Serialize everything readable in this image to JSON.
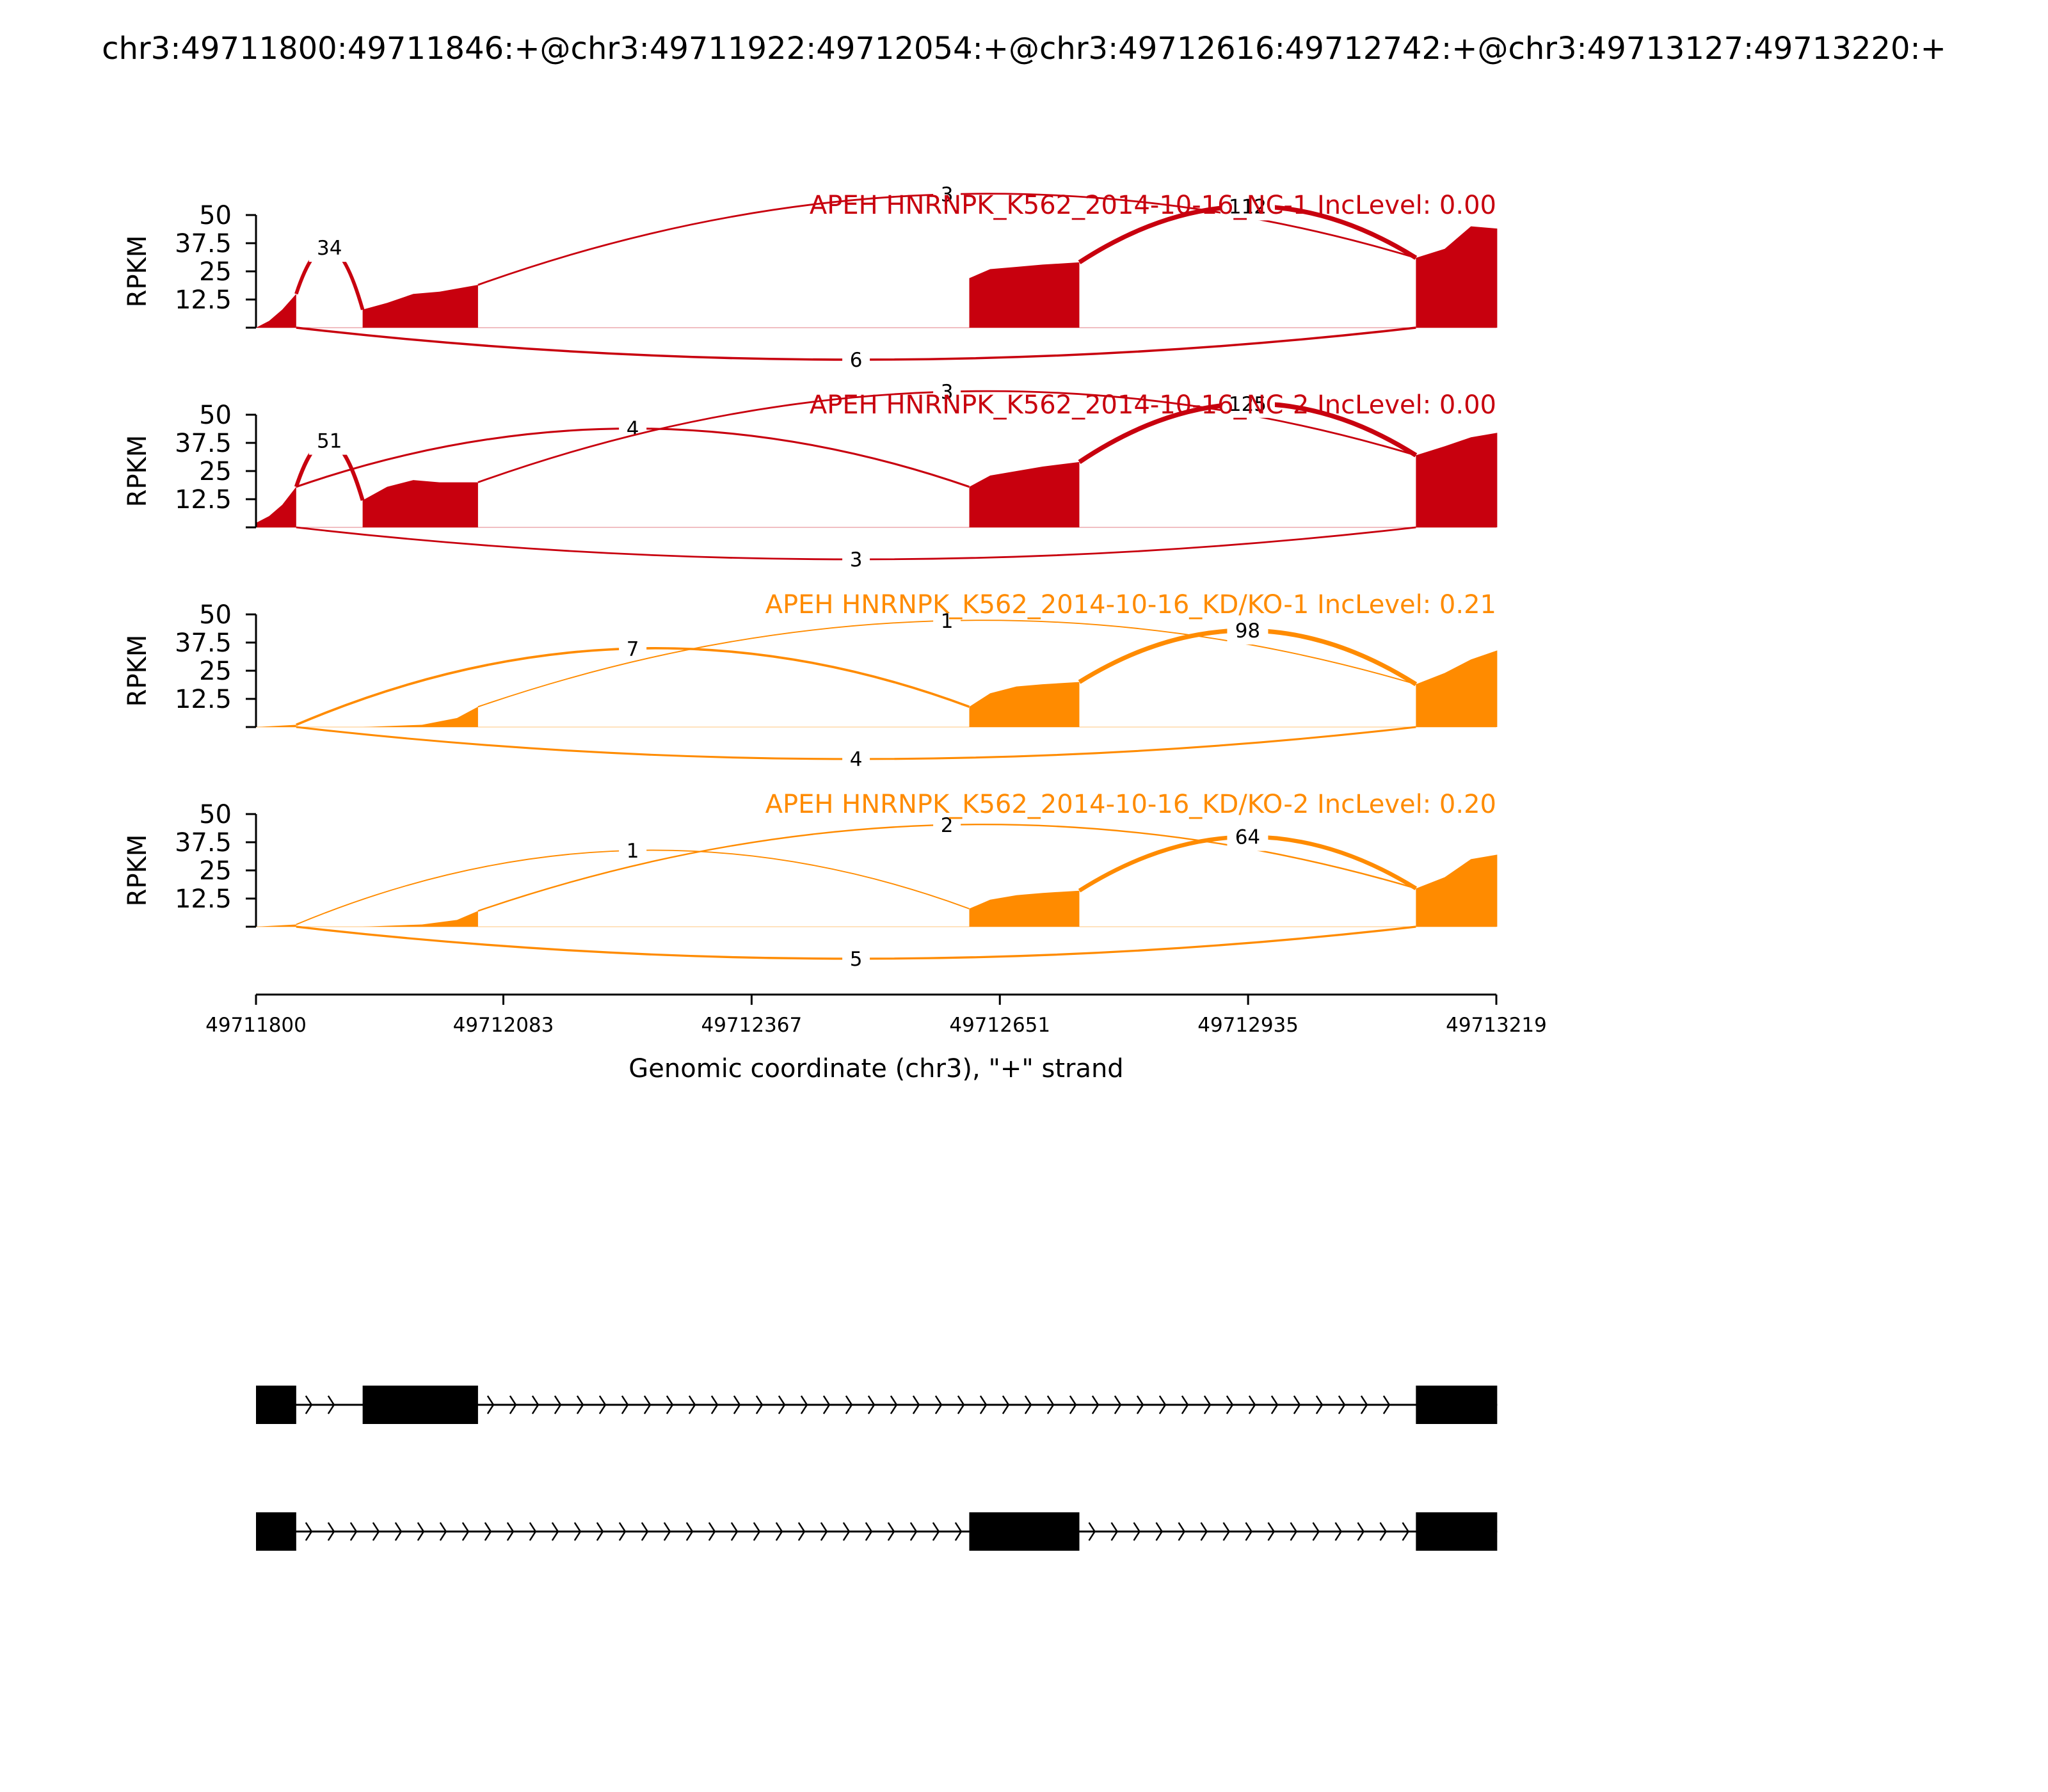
{
  "figure": {
    "title": "chr3:49711800:49711846:+@chr3:49711922:49712054:+@chr3:49712616:49712742:+@chr3:49713127:49713220:+"
  },
  "chart_data": {
    "type": "area",
    "gene": "APEH",
    "chromosome": "chr3",
    "strand": "+",
    "xlabel": "Genomic coordinate (chr3), \"+\" strand",
    "ylabel": "RPKM",
    "xlim": [
      49711800,
      49713219
    ],
    "xticks": [
      49711800,
      49712083,
      49712367,
      49712651,
      49712935,
      49713219
    ],
    "ylim": [
      0,
      50
    ],
    "yticks": [
      12.5,
      25,
      37.5,
      50
    ],
    "ytick_labels": [
      "12.5",
      "25",
      "37.5",
      "50"
    ],
    "exons": [
      {
        "start": 49711800,
        "end": 49711846
      },
      {
        "start": 49711922,
        "end": 49712054
      },
      {
        "start": 49712616,
        "end": 49712742
      },
      {
        "start": 49713127,
        "end": 49713220
      }
    ],
    "series": [
      {
        "name": "APEH HNRNPK_K562_2014-10-16_NC-1 IncLevel: 0.00",
        "color": "#C8000E",
        "coverage": [
          {
            "x": 49711800,
            "y": 0
          },
          {
            "x": 49711815,
            "y": 3
          },
          {
            "x": 49711830,
            "y": 8
          },
          {
            "x": 49711846,
            "y": 15
          },
          {
            "x": 49711922,
            "y": 8
          },
          {
            "x": 49711950,
            "y": 11
          },
          {
            "x": 49711980,
            "y": 15
          },
          {
            "x": 49712010,
            "y": 16
          },
          {
            "x": 49712054,
            "y": 19
          },
          {
            "x": 49712616,
            "y": 22
          },
          {
            "x": 49712640,
            "y": 26
          },
          {
            "x": 49712670,
            "y": 27
          },
          {
            "x": 49712700,
            "y": 28
          },
          {
            "x": 49712742,
            "y": 29
          },
          {
            "x": 49713127,
            "y": 31
          },
          {
            "x": 49713160,
            "y": 35
          },
          {
            "x": 49713190,
            "y": 45
          },
          {
            "x": 49713220,
            "y": 44
          }
        ],
        "junctions": [
          {
            "from": 49711846,
            "to": 49711922,
            "count": 34,
            "side": "above"
          },
          {
            "from": 49712054,
            "to": 49713127,
            "count": 3,
            "side": "above"
          },
          {
            "from": 49712742,
            "to": 49713127,
            "count": 112,
            "side": "above"
          },
          {
            "from": 49711846,
            "to": 49713127,
            "count": 6,
            "side": "below"
          }
        ]
      },
      {
        "name": "APEH HNRNPK_K562_2014-10-16_NC-2 IncLevel: 0.00",
        "color": "#C8000E",
        "coverage": [
          {
            "x": 49711800,
            "y": 2
          },
          {
            "x": 49711815,
            "y": 5
          },
          {
            "x": 49711830,
            "y": 10
          },
          {
            "x": 49711846,
            "y": 18
          },
          {
            "x": 49711922,
            "y": 12
          },
          {
            "x": 49711950,
            "y": 18
          },
          {
            "x": 49711980,
            "y": 21
          },
          {
            "x": 49712010,
            "y": 20
          },
          {
            "x": 49712054,
            "y": 20
          },
          {
            "x": 49712616,
            "y": 18
          },
          {
            "x": 49712640,
            "y": 23
          },
          {
            "x": 49712670,
            "y": 25
          },
          {
            "x": 49712700,
            "y": 27
          },
          {
            "x": 49712742,
            "y": 29
          },
          {
            "x": 49713127,
            "y": 32
          },
          {
            "x": 49713160,
            "y": 36
          },
          {
            "x": 49713190,
            "y": 40
          },
          {
            "x": 49713220,
            "y": 42
          }
        ],
        "junctions": [
          {
            "from": 49711846,
            "to": 49711922,
            "count": 51,
            "side": "above"
          },
          {
            "from": 49711846,
            "to": 49712616,
            "count": 4,
            "side": "above"
          },
          {
            "from": 49712054,
            "to": 49713127,
            "count": 3,
            "side": "above"
          },
          {
            "from": 49712742,
            "to": 49713127,
            "count": 125,
            "side": "above"
          },
          {
            "from": 49711846,
            "to": 49713127,
            "count": 3,
            "side": "below"
          }
        ]
      },
      {
        "name": "APEH HNRNPK_K562_2014-10-16_KD/KO-1 IncLevel: 0.21",
        "color": "#FF8B00",
        "coverage": [
          {
            "x": 49711800,
            "y": 0
          },
          {
            "x": 49711846,
            "y": 1
          },
          {
            "x": 49711922,
            "y": 0
          },
          {
            "x": 49711990,
            "y": 1
          },
          {
            "x": 49712030,
            "y": 4
          },
          {
            "x": 49712054,
            "y": 9
          },
          {
            "x": 49712616,
            "y": 9
          },
          {
            "x": 49712640,
            "y": 15
          },
          {
            "x": 49712670,
            "y": 18
          },
          {
            "x": 49712700,
            "y": 19
          },
          {
            "x": 49712742,
            "y": 20
          },
          {
            "x": 49713127,
            "y": 19
          },
          {
            "x": 49713160,
            "y": 24
          },
          {
            "x": 49713190,
            "y": 30
          },
          {
            "x": 49713220,
            "y": 34
          }
        ],
        "junctions": [
          {
            "from": 49711846,
            "to": 49712616,
            "count": 7,
            "side": "above"
          },
          {
            "from": 49712054,
            "to": 49713127,
            "count": 1,
            "side": "above"
          },
          {
            "from": 49712742,
            "to": 49713127,
            "count": 98,
            "side": "above"
          },
          {
            "from": 49711846,
            "to": 49713127,
            "count": 4,
            "side": "below"
          }
        ]
      },
      {
        "name": "APEH HNRNPK_K562_2014-10-16_KD/KO-2 IncLevel: 0.20",
        "color": "#FF8B00",
        "coverage": [
          {
            "x": 49711800,
            "y": 0
          },
          {
            "x": 49711846,
            "y": 1
          },
          {
            "x": 49711922,
            "y": 0
          },
          {
            "x": 49711990,
            "y": 1
          },
          {
            "x": 49712030,
            "y": 3
          },
          {
            "x": 49712054,
            "y": 7
          },
          {
            "x": 49712616,
            "y": 8
          },
          {
            "x": 49712640,
            "y": 12
          },
          {
            "x": 49712670,
            "y": 14
          },
          {
            "x": 49712700,
            "y": 15
          },
          {
            "x": 49712742,
            "y": 16
          },
          {
            "x": 49713127,
            "y": 17
          },
          {
            "x": 49713160,
            "y": 22
          },
          {
            "x": 49713190,
            "y": 30
          },
          {
            "x": 49713220,
            "y": 32
          }
        ],
        "junctions": [
          {
            "from": 49711846,
            "to": 49712616,
            "count": 1,
            "side": "above"
          },
          {
            "from": 49712054,
            "to": 49713127,
            "count": 2,
            "side": "above"
          },
          {
            "from": 49712742,
            "to": 49713127,
            "count": 64,
            "side": "above"
          },
          {
            "from": 49711846,
            "to": 49713127,
            "count": 5,
            "side": "below"
          }
        ]
      }
    ],
    "isoforms": [
      {
        "exons": [
          [
            49711800,
            49711846
          ],
          [
            49711922,
            49712054
          ],
          [
            49713127,
            49713220
          ]
        ]
      },
      {
        "exons": [
          [
            49711800,
            49711846
          ],
          [
            49712616,
            49712742
          ],
          [
            49713127,
            49713220
          ]
        ]
      }
    ]
  }
}
